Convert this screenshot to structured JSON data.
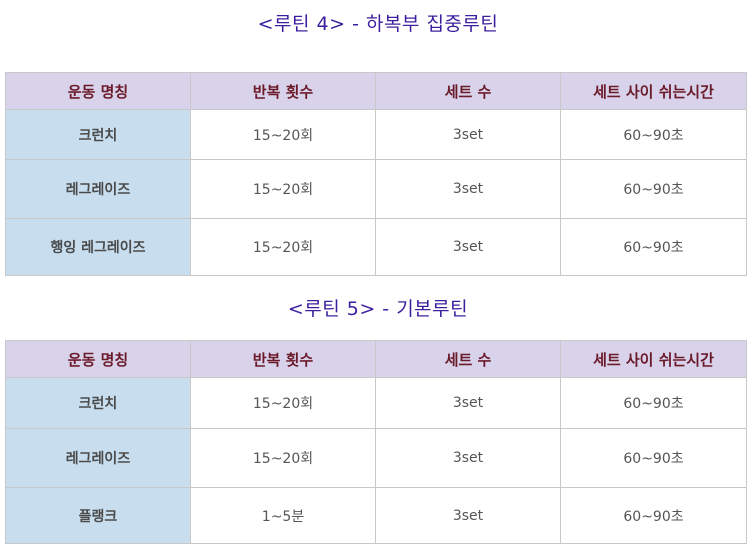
{
  "routines": [
    {
      "title": "<루틴 4> - 하복부 집중루틴",
      "headers": [
        "운동 명칭",
        "반복 횟수",
        "세트 수",
        "세트 사이 쉬는시간"
      ],
      "rows": [
        [
          "크런치",
          "15~20회",
          "3set",
          "60~90초"
        ],
        [
          "레그레이즈",
          "15~20회",
          "3set",
          "60~90초"
        ],
        [
          "행잉 레그레이즈",
          "15~20회",
          "3set",
          "60~90초"
        ]
      ]
    },
    {
      "title": "<루틴 5> - 기본루틴",
      "headers": [
        "운동 명칭",
        "반복 횟수",
        "세트 수",
        "세트 사이 쉬는시간"
      ],
      "rows": [
        [
          "크런치",
          "15~20회",
          "3set",
          "60~90초"
        ],
        [
          "레그레이즈",
          "15~20회",
          "3set",
          "60~90초"
        ],
        [
          "플랭크",
          "1~5분",
          "3set",
          "60~90초"
        ]
      ]
    }
  ],
  "colors": {
    "title": "#3b1f9e",
    "header_bg": "#d8d3ea",
    "header_text": "#6b1a2a",
    "name_cell_bg": "#c8deef"
  }
}
